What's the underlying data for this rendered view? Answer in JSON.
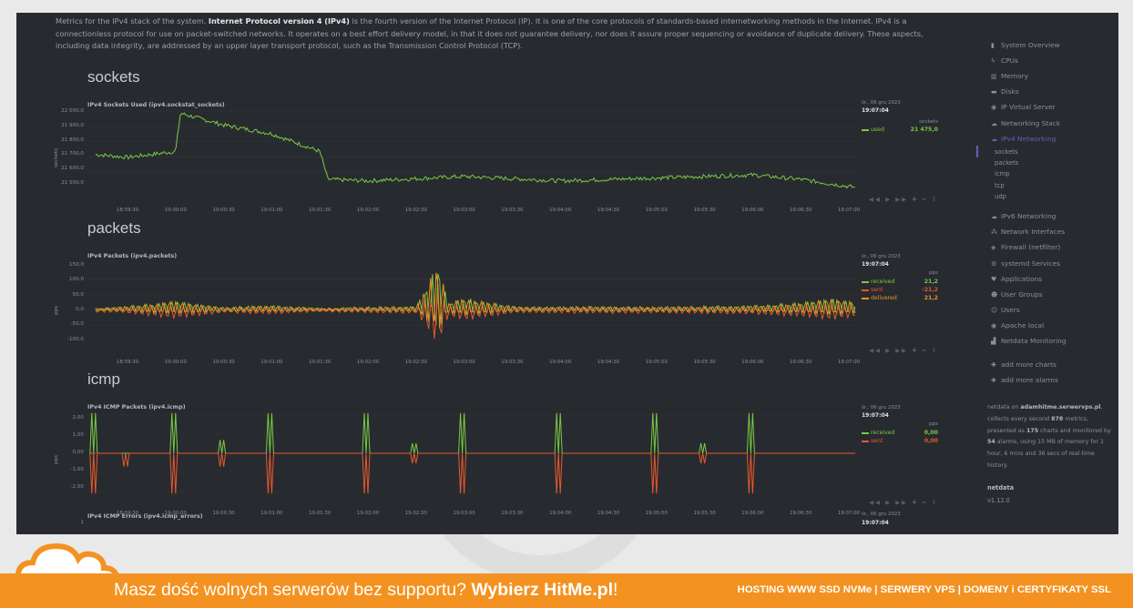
{
  "intro": {
    "pre": "Metrics for the IPv4 stack of the system. ",
    "bold": "Internet Protocol version 4 (IPv4)",
    "post": " is the fourth version of the Internet Protocol (IP). It is one of the core protocols of standards-based internetworking methods in the Internet. IPv4 is a connectionless protocol for use on packet-switched networks. It operates on a best effort delivery model, in that it does not guarantee delivery, nor does it assure proper sequencing or avoidance of duplicate delivery. These aspects, including data integrity, are addressed by an upper layer transport protocol, such as the Transmission Control Protocol (TCP)."
  },
  "x_ticks": [
    "18:59:30",
    "19:00:00",
    "19:00:30",
    "19:01:00",
    "19:01:30",
    "19:02:00",
    "19:02:30",
    "19:03:00",
    "19:03:30",
    "19:04:00",
    "19:04:30",
    "19:05:00",
    "19:05:30",
    "19:06:00",
    "19:06:30",
    "19:07:00"
  ],
  "legend_common": {
    "date": "śr., 06 gru 2023",
    "time": "19:07:04",
    "units": "pps",
    "controls": "◀◀ ▶ ▶▶ ✚ ━ ↕"
  },
  "sections": {
    "sockets": {
      "title": "sockets",
      "chart_title": "IPv4 Sockets Used (ipv4.sockstat_sockets)",
      "ylabel": "sockets",
      "units": "sockets",
      "y_ticks": [
        "22 000,0",
        "21 900,0",
        "21 800,0",
        "21 700,0",
        "21 600,0",
        "21 500,0"
      ],
      "legend": [
        {
          "name": "used",
          "value": "21 475,0",
          "color": "#7ac943"
        }
      ]
    },
    "packets": {
      "title": "packets",
      "chart_title": "IPv4 Packets (ipv4.packets)",
      "ylabel": "pps",
      "y_ticks": [
        "150,0",
        "100,0",
        "50,0",
        "0,0",
        "-50,0",
        "-100,0"
      ],
      "legend": [
        {
          "name": "received",
          "value": "21,2",
          "color": "#7ac943"
        },
        {
          "name": "sent",
          "value": "-21,2",
          "color": "#e8582a"
        },
        {
          "name": "delivered",
          "value": "21,2",
          "color": "#f39221"
        }
      ]
    },
    "icmp": {
      "title": "icmp",
      "chart_title": "IPv4 ICMP Packets (ipv4.icmp)",
      "ylabel": "pps",
      "y_ticks": [
        "2,00",
        "1,00",
        "0,00",
        "-1,00",
        "-2,00"
      ],
      "legend": [
        {
          "name": "received",
          "value": "0,00",
          "color": "#7ac943"
        },
        {
          "name": "sent",
          "value": "0,00",
          "color": "#e8582a"
        }
      ]
    },
    "icmp_errors": {
      "chart_title": "IPv4 ICMP Errors (ipv4.icmp_errors)",
      "y_tick": "1"
    }
  },
  "chart_data": [
    {
      "type": "line",
      "title": "IPv4 Sockets Used (ipv4.sockstat_sockets)",
      "ylabel": "sockets",
      "ylim": [
        21450,
        22020
      ],
      "x": [
        "18:59:10",
        "18:59:30",
        "19:00:00",
        "19:00:03",
        "19:00:30",
        "19:01:00",
        "19:01:30",
        "19:01:35",
        "19:02:00",
        "19:03:00",
        "19:04:00",
        "19:05:00",
        "19:06:00",
        "19:06:30",
        "19:07:04"
      ],
      "series": [
        {
          "name": "used",
          "values": [
            21700,
            21680,
            21720,
            21980,
            21900,
            21840,
            21720,
            21530,
            21520,
            21550,
            21520,
            21540,
            21560,
            21530,
            21475
          ]
        }
      ]
    },
    {
      "type": "line",
      "title": "IPv4 Packets (ipv4.packets)",
      "ylabel": "pps",
      "ylim": [
        -110,
        160
      ],
      "x": [
        "18:59:10",
        "18:59:30",
        "19:00:00",
        "19:00:30",
        "19:01:00",
        "19:01:30",
        "19:02:00",
        "19:02:30",
        "19:02:44",
        "19:02:50",
        "19:03:00",
        "19:03:30",
        "19:04:00",
        "19:04:30",
        "19:05:00",
        "19:05:30",
        "19:06:00",
        "19:06:30",
        "19:06:50",
        "19:07:04"
      ],
      "series": [
        {
          "name": "received",
          "values": [
            5,
            10,
            25,
            8,
            12,
            5,
            8,
            10,
            140,
            20,
            35,
            10,
            8,
            10,
            8,
            10,
            12,
            20,
            35,
            21.2
          ]
        },
        {
          "name": "sent",
          "values": [
            -5,
            -10,
            -25,
            -8,
            -12,
            -5,
            -8,
            -10,
            -105,
            -20,
            -30,
            -10,
            -8,
            -10,
            -8,
            -10,
            -12,
            -20,
            -30,
            -21.2
          ]
        },
        {
          "name": "delivered",
          "values": [
            5,
            10,
            25,
            8,
            12,
            5,
            8,
            10,
            140,
            20,
            35,
            10,
            8,
            10,
            8,
            10,
            12,
            20,
            35,
            21.2
          ]
        }
      ]
    },
    {
      "type": "line",
      "title": "IPv4 ICMP Packets (ipv4.icmp)",
      "ylabel": "pps",
      "ylim": [
        -2.5,
        2.5
      ],
      "x": [
        "18:59:10",
        "18:59:30",
        "19:00:00",
        "19:00:30",
        "19:01:00",
        "19:01:30",
        "19:02:00",
        "19:02:30",
        "19:03:00",
        "19:03:30",
        "19:04:00",
        "19:04:30",
        "19:05:00",
        "19:05:30",
        "19:06:00",
        "19:06:30",
        "19:07:04"
      ],
      "series": [
        {
          "name": "received",
          "values": [
            2.4,
            0,
            2.4,
            0.8,
            2.4,
            0,
            2.4,
            0.6,
            2.4,
            0,
            2.4,
            0,
            2.4,
            0.6,
            2.4,
            0,
            0
          ]
        },
        {
          "name": "sent",
          "values": [
            -2.4,
            -0.8,
            -2.4,
            -0.8,
            -2.4,
            0,
            -2.4,
            -0.6,
            -2.4,
            0,
            -2.4,
            0,
            -2.4,
            -0.6,
            -2.4,
            0,
            0
          ]
        }
      ]
    }
  ],
  "sidebar": {
    "items": [
      {
        "label": "System Overview",
        "icon": "bookmark-icon",
        "glyph": "▮"
      },
      {
        "label": "CPUs",
        "icon": "bolt-icon",
        "glyph": "ϟ"
      },
      {
        "label": "Memory",
        "icon": "memory-icon",
        "glyph": "▥"
      },
      {
        "label": "Disks",
        "icon": "disk-icon",
        "glyph": "▬"
      },
      {
        "label": "IP Virtual Server",
        "icon": "eye-icon",
        "glyph": "◉"
      },
      {
        "label": "Networking Stack",
        "icon": "cloud-icon",
        "glyph": "☁"
      },
      {
        "label": "IPv4 Networking",
        "icon": "cloud-icon",
        "glyph": "☁",
        "active": true
      }
    ],
    "subitems": [
      "sockets",
      "packets",
      "icmp",
      "tcp",
      "udp"
    ],
    "items2": [
      {
        "label": "IPv6 Networking",
        "icon": "cloud-icon",
        "glyph": "☁"
      },
      {
        "label": "Network Interfaces",
        "icon": "sitemap-icon",
        "glyph": "⁂"
      },
      {
        "label": "Firewall (netfilter)",
        "icon": "shield-icon",
        "glyph": "◈"
      },
      {
        "label": "systemd Services",
        "icon": "cogs-icon",
        "glyph": "⚙"
      },
      {
        "label": "Applications",
        "icon": "heartbeat-icon",
        "glyph": "♥"
      },
      {
        "label": "User Groups",
        "icon": "users-icon",
        "glyph": "☻"
      },
      {
        "label": "Users",
        "icon": "user-icon",
        "glyph": "☺"
      },
      {
        "label": "Apache local",
        "icon": "eye-icon",
        "glyph": "◉"
      },
      {
        "label": "Netdata Monitoring",
        "icon": "bar-chart-icon",
        "glyph": "▟"
      }
    ],
    "actions": [
      {
        "label": "add more charts",
        "icon": "plus-icon",
        "glyph": "✚"
      },
      {
        "label": "add more alarms",
        "icon": "plus-icon",
        "glyph": "✚"
      }
    ],
    "note": {
      "p1": "netdata on ",
      "host": "adamhitme.serwervps.pl",
      "p2": ", collects every second ",
      "metrics": "878",
      "p3": " metrics, presented as ",
      "charts": "175",
      "p4": " charts and monitored by ",
      "alarms": "54",
      "p5": " alarms, using 15 MB of memory for 1 hour, 6 mins and 36 secs of real-time history."
    },
    "version_title": "netdata",
    "version": "v1.12.0"
  },
  "banner": {
    "left_text": "Masz dość wolnych serwerów bez supportu? ",
    "left_bold": "Wybierz HitMe.pl",
    "left_end": "!",
    "right_text": "HOSTING WWW SSD NVMe | SERWERY VPS | DOMENY i CERTYFIKATY SSL"
  },
  "colors": {
    "received": "#7ac943",
    "sent": "#e8582a",
    "delivered": "#f39221",
    "accent": "#6f5ab3",
    "banner": "#f39221"
  }
}
